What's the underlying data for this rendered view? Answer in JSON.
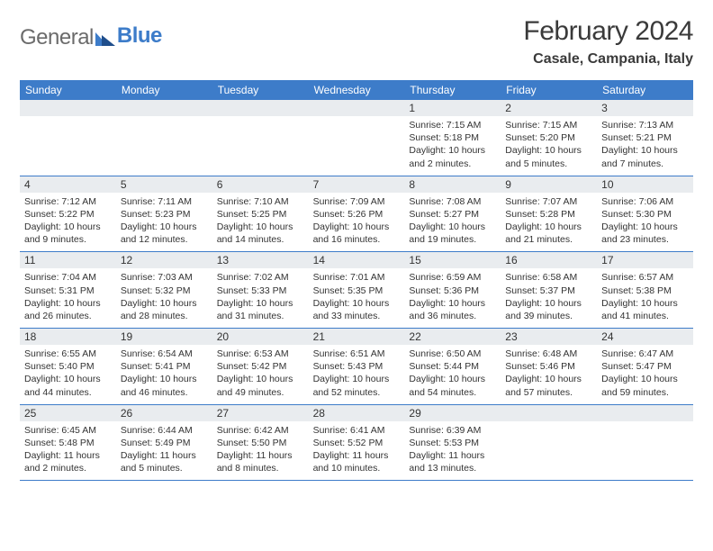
{
  "logo": {
    "text1": "General",
    "text2": "Blue"
  },
  "title": "February 2024",
  "location": "Casale, Campania, Italy",
  "accent_color": "#3d7cc9",
  "day_strip_bg": "#e9ecef",
  "text_color": "#333333",
  "background_color": "#ffffff",
  "day_names": [
    "Sunday",
    "Monday",
    "Tuesday",
    "Wednesday",
    "Thursday",
    "Friday",
    "Saturday"
  ],
  "weeks": [
    [
      {
        "n": ""
      },
      {
        "n": ""
      },
      {
        "n": ""
      },
      {
        "n": ""
      },
      {
        "n": "1",
        "sr": "Sunrise: 7:15 AM",
        "ss": "Sunset: 5:18 PM",
        "d1": "Daylight: 10 hours",
        "d2": "and 2 minutes."
      },
      {
        "n": "2",
        "sr": "Sunrise: 7:15 AM",
        "ss": "Sunset: 5:20 PM",
        "d1": "Daylight: 10 hours",
        "d2": "and 5 minutes."
      },
      {
        "n": "3",
        "sr": "Sunrise: 7:13 AM",
        "ss": "Sunset: 5:21 PM",
        "d1": "Daylight: 10 hours",
        "d2": "and 7 minutes."
      }
    ],
    [
      {
        "n": "4",
        "sr": "Sunrise: 7:12 AM",
        "ss": "Sunset: 5:22 PM",
        "d1": "Daylight: 10 hours",
        "d2": "and 9 minutes."
      },
      {
        "n": "5",
        "sr": "Sunrise: 7:11 AM",
        "ss": "Sunset: 5:23 PM",
        "d1": "Daylight: 10 hours",
        "d2": "and 12 minutes."
      },
      {
        "n": "6",
        "sr": "Sunrise: 7:10 AM",
        "ss": "Sunset: 5:25 PM",
        "d1": "Daylight: 10 hours",
        "d2": "and 14 minutes."
      },
      {
        "n": "7",
        "sr": "Sunrise: 7:09 AM",
        "ss": "Sunset: 5:26 PM",
        "d1": "Daylight: 10 hours",
        "d2": "and 16 minutes."
      },
      {
        "n": "8",
        "sr": "Sunrise: 7:08 AM",
        "ss": "Sunset: 5:27 PM",
        "d1": "Daylight: 10 hours",
        "d2": "and 19 minutes."
      },
      {
        "n": "9",
        "sr": "Sunrise: 7:07 AM",
        "ss": "Sunset: 5:28 PM",
        "d1": "Daylight: 10 hours",
        "d2": "and 21 minutes."
      },
      {
        "n": "10",
        "sr": "Sunrise: 7:06 AM",
        "ss": "Sunset: 5:30 PM",
        "d1": "Daylight: 10 hours",
        "d2": "and 23 minutes."
      }
    ],
    [
      {
        "n": "11",
        "sr": "Sunrise: 7:04 AM",
        "ss": "Sunset: 5:31 PM",
        "d1": "Daylight: 10 hours",
        "d2": "and 26 minutes."
      },
      {
        "n": "12",
        "sr": "Sunrise: 7:03 AM",
        "ss": "Sunset: 5:32 PM",
        "d1": "Daylight: 10 hours",
        "d2": "and 28 minutes."
      },
      {
        "n": "13",
        "sr": "Sunrise: 7:02 AM",
        "ss": "Sunset: 5:33 PM",
        "d1": "Daylight: 10 hours",
        "d2": "and 31 minutes."
      },
      {
        "n": "14",
        "sr": "Sunrise: 7:01 AM",
        "ss": "Sunset: 5:35 PM",
        "d1": "Daylight: 10 hours",
        "d2": "and 33 minutes."
      },
      {
        "n": "15",
        "sr": "Sunrise: 6:59 AM",
        "ss": "Sunset: 5:36 PM",
        "d1": "Daylight: 10 hours",
        "d2": "and 36 minutes."
      },
      {
        "n": "16",
        "sr": "Sunrise: 6:58 AM",
        "ss": "Sunset: 5:37 PM",
        "d1": "Daylight: 10 hours",
        "d2": "and 39 minutes."
      },
      {
        "n": "17",
        "sr": "Sunrise: 6:57 AM",
        "ss": "Sunset: 5:38 PM",
        "d1": "Daylight: 10 hours",
        "d2": "and 41 minutes."
      }
    ],
    [
      {
        "n": "18",
        "sr": "Sunrise: 6:55 AM",
        "ss": "Sunset: 5:40 PM",
        "d1": "Daylight: 10 hours",
        "d2": "and 44 minutes."
      },
      {
        "n": "19",
        "sr": "Sunrise: 6:54 AM",
        "ss": "Sunset: 5:41 PM",
        "d1": "Daylight: 10 hours",
        "d2": "and 46 minutes."
      },
      {
        "n": "20",
        "sr": "Sunrise: 6:53 AM",
        "ss": "Sunset: 5:42 PM",
        "d1": "Daylight: 10 hours",
        "d2": "and 49 minutes."
      },
      {
        "n": "21",
        "sr": "Sunrise: 6:51 AM",
        "ss": "Sunset: 5:43 PM",
        "d1": "Daylight: 10 hours",
        "d2": "and 52 minutes."
      },
      {
        "n": "22",
        "sr": "Sunrise: 6:50 AM",
        "ss": "Sunset: 5:44 PM",
        "d1": "Daylight: 10 hours",
        "d2": "and 54 minutes."
      },
      {
        "n": "23",
        "sr": "Sunrise: 6:48 AM",
        "ss": "Sunset: 5:46 PM",
        "d1": "Daylight: 10 hours",
        "d2": "and 57 minutes."
      },
      {
        "n": "24",
        "sr": "Sunrise: 6:47 AM",
        "ss": "Sunset: 5:47 PM",
        "d1": "Daylight: 10 hours",
        "d2": "and 59 minutes."
      }
    ],
    [
      {
        "n": "25",
        "sr": "Sunrise: 6:45 AM",
        "ss": "Sunset: 5:48 PM",
        "d1": "Daylight: 11 hours",
        "d2": "and 2 minutes."
      },
      {
        "n": "26",
        "sr": "Sunrise: 6:44 AM",
        "ss": "Sunset: 5:49 PM",
        "d1": "Daylight: 11 hours",
        "d2": "and 5 minutes."
      },
      {
        "n": "27",
        "sr": "Sunrise: 6:42 AM",
        "ss": "Sunset: 5:50 PM",
        "d1": "Daylight: 11 hours",
        "d2": "and 8 minutes."
      },
      {
        "n": "28",
        "sr": "Sunrise: 6:41 AM",
        "ss": "Sunset: 5:52 PM",
        "d1": "Daylight: 11 hours",
        "d2": "and 10 minutes."
      },
      {
        "n": "29",
        "sr": "Sunrise: 6:39 AM",
        "ss": "Sunset: 5:53 PM",
        "d1": "Daylight: 11 hours",
        "d2": "and 13 minutes."
      },
      {
        "n": ""
      },
      {
        "n": ""
      }
    ]
  ]
}
